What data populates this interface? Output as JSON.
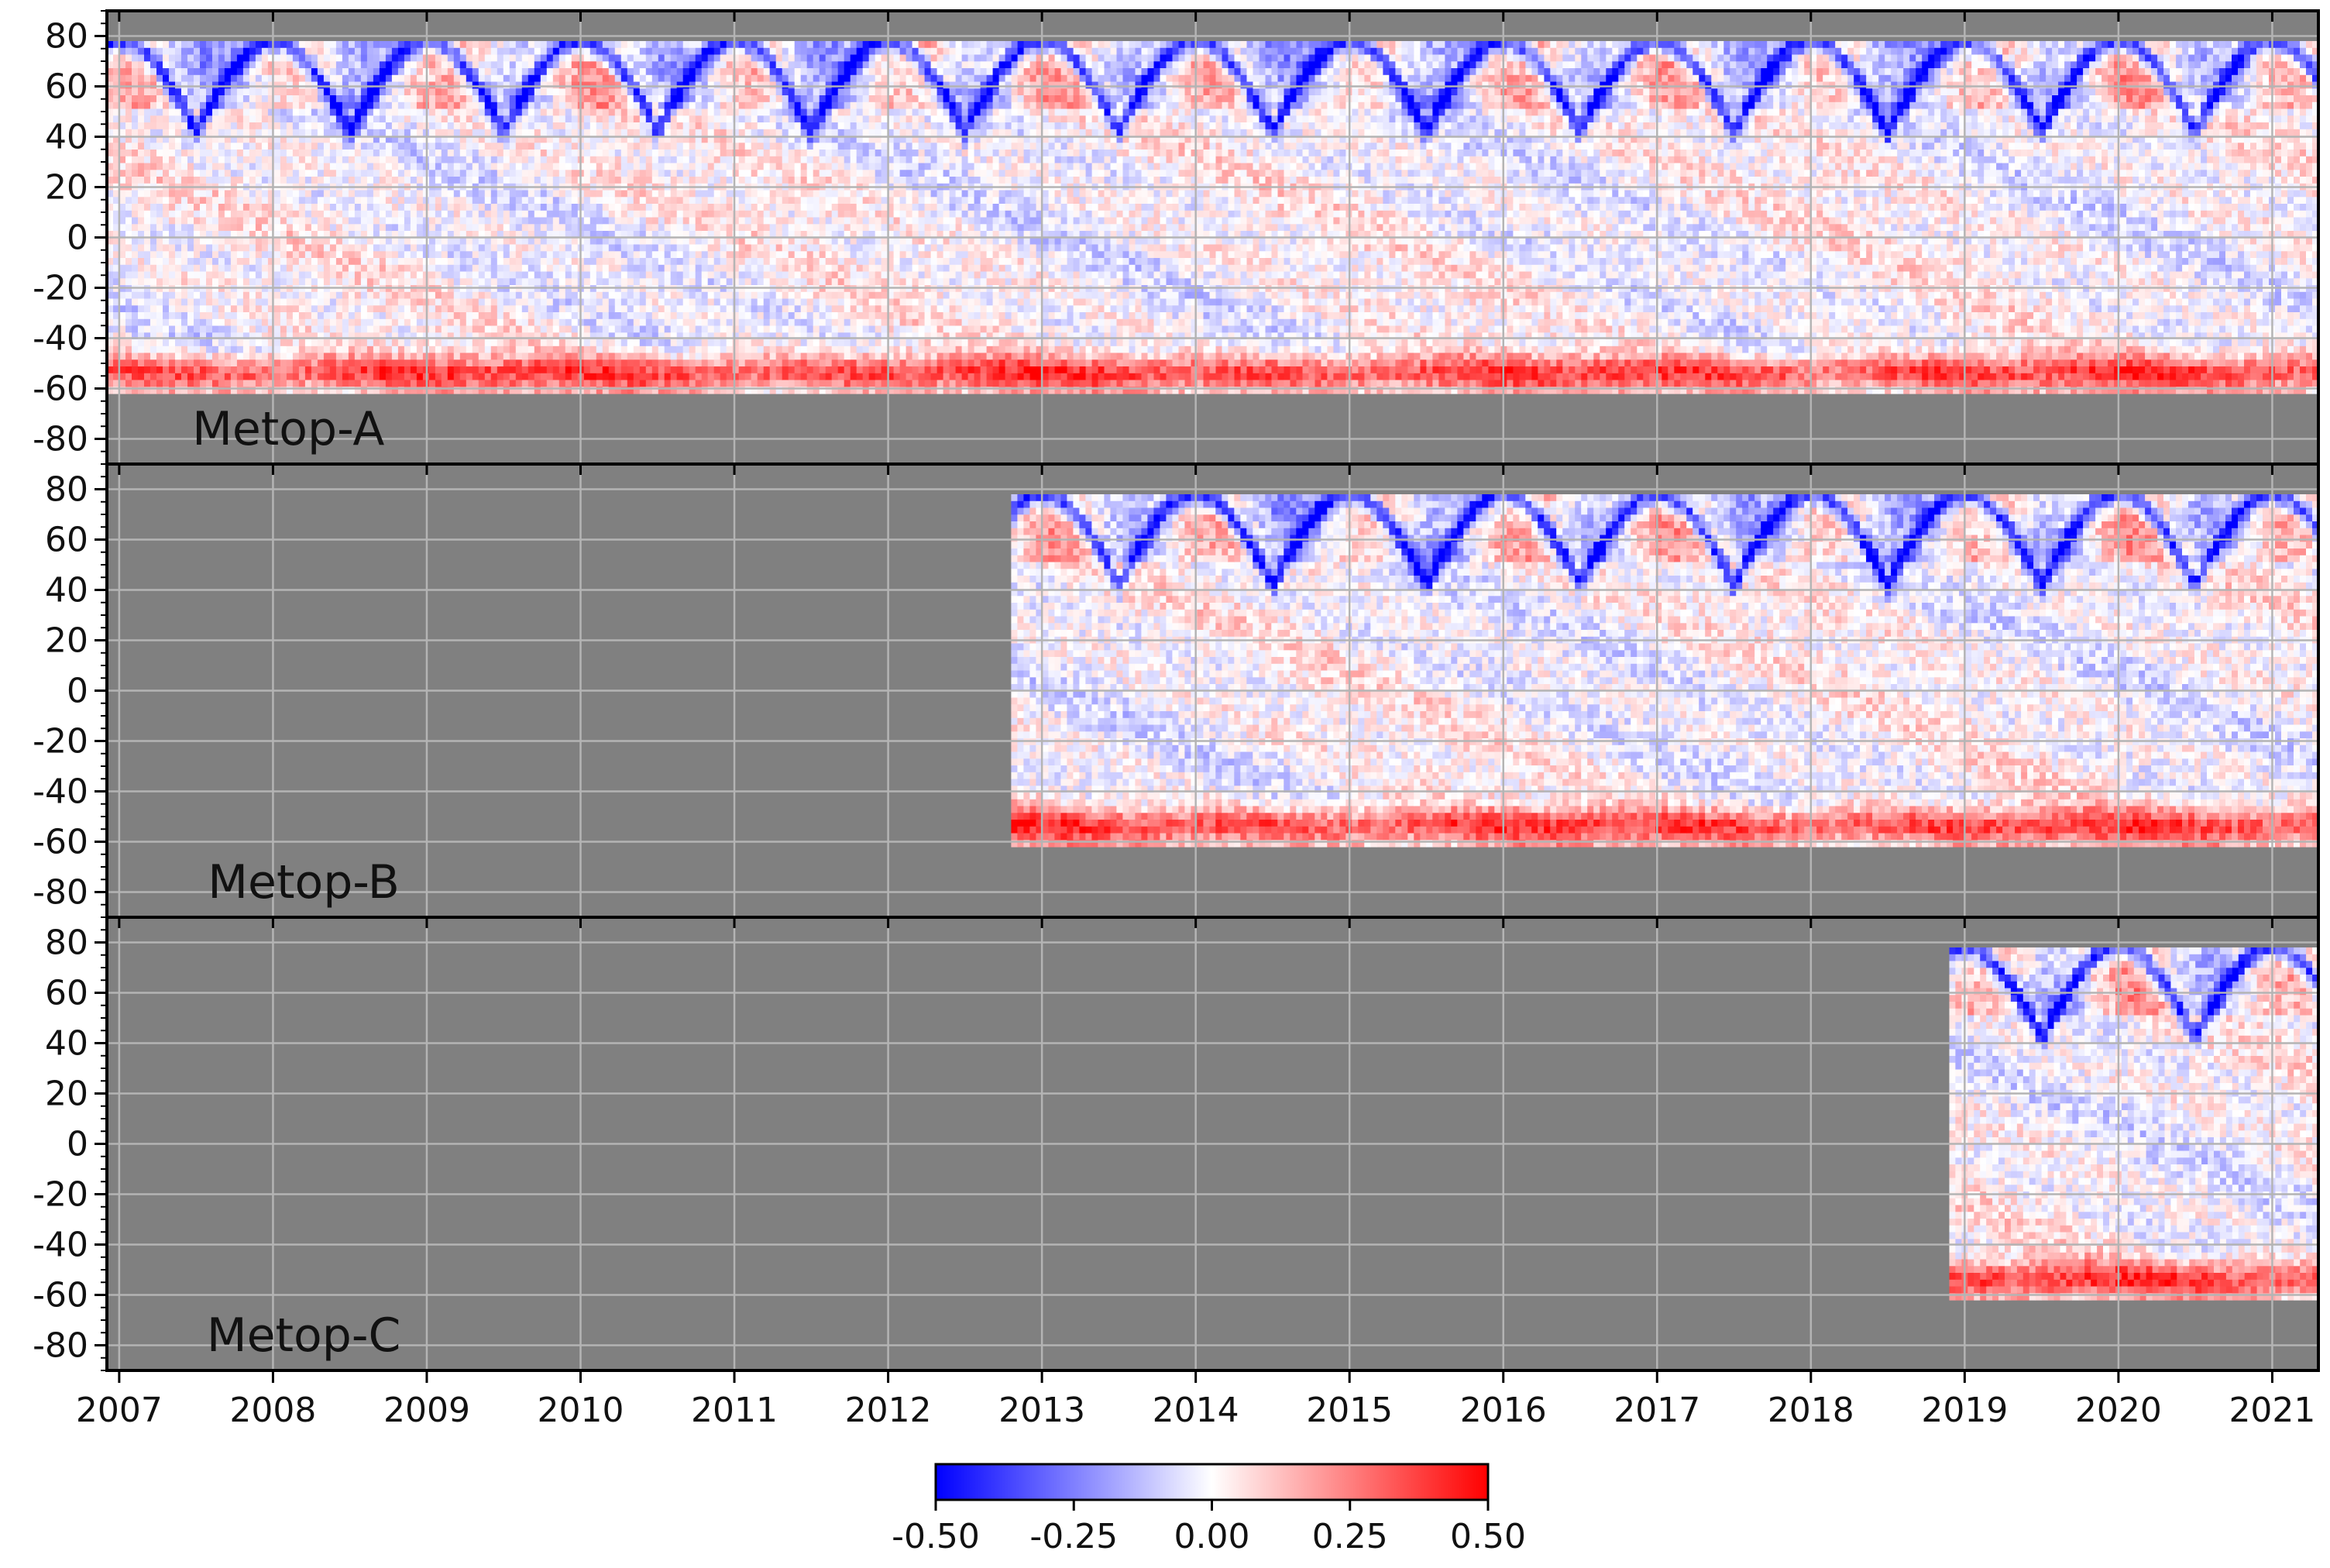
{
  "chart_data": {
    "type": "heatmap",
    "title": "",
    "xlabel": "",
    "ylabel": "",
    "x_ticks": [
      "2007",
      "2008",
      "2009",
      "2010",
      "2011",
      "2012",
      "2013",
      "2014",
      "2015",
      "2016",
      "2017",
      "2018",
      "2019",
      "2020",
      "2021"
    ],
    "xlim": [
      2006.92,
      2021.3
    ],
    "y_ticks": [
      "80",
      "60",
      "40",
      "20",
      "0",
      "-20",
      "-40",
      "-60",
      "-80"
    ],
    "ylim": [
      -90,
      90
    ],
    "grid": true,
    "colorbar": {
      "min": -0.5,
      "max": 0.5,
      "ticks": [
        "-0.50",
        "-0.25",
        "0.00",
        "0.25",
        "0.50"
      ],
      "colormap": "bwr",
      "placement": "bottom"
    },
    "panels": [
      {
        "name": "Metop-A",
        "label": "Metop-A",
        "start": 2006.92,
        "end": 2021.3,
        "lat_min": -62,
        "lat_max": 78
      },
      {
        "name": "Metop-B",
        "label": "Metop-B",
        "start": 2012.8,
        "end": 2021.3,
        "lat_min": -62,
        "lat_max": 78
      },
      {
        "name": "Metop-C",
        "label": "Metop-C",
        "start": 2018.9,
        "end": 2021.3,
        "lat_min": -62,
        "lat_max": 78
      }
    ],
    "features": {
      "high_latitude_seasonal_arcs": "blue (negative) V-shaped bands each year between 40 and 78 deg N",
      "southern_band": "red (positive) values near -40 to -62 deg S",
      "missing_data_color": "#808080"
    }
  },
  "colors": {
    "missing": "#808080",
    "negative": "#0000ff",
    "zero": "#ffffff",
    "positive": "#ff0000",
    "grid": "#b4b4b4"
  }
}
